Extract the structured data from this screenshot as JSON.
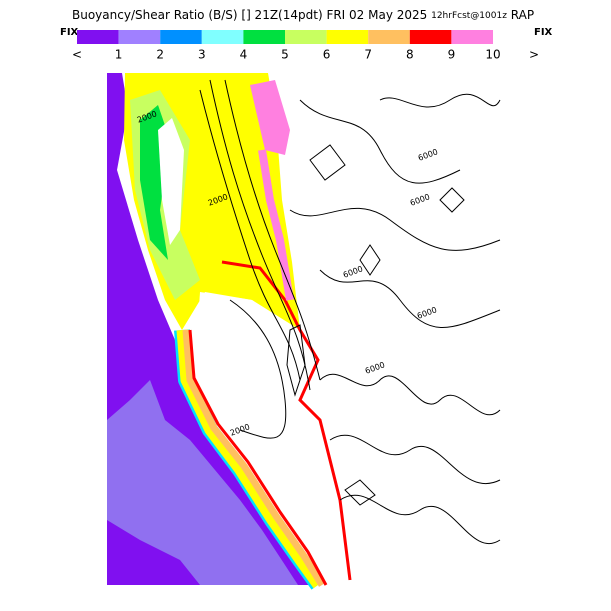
{
  "header": {
    "title": "Buoyancy/Shear Ratio (B/S) [] 21Z(14pdt) FRI 02 May 2025",
    "forecast": "12hrFcst@1001z",
    "model": "RAP"
  },
  "legend": {
    "fix_left": "FIX",
    "fix_right": "FIX",
    "prev": "<",
    "next": ">",
    "items": [
      {
        "color": "#8010f0",
        "label": ""
      },
      {
        "color": "#a080ff",
        "label": "1"
      },
      {
        "color": "#0090ff",
        "label": "2"
      },
      {
        "color": "#80ffff",
        "label": "3"
      },
      {
        "color": "#00e040",
        "label": "4"
      },
      {
        "color": "#c8ff60",
        "label": "5"
      },
      {
        "color": "#ffff00",
        "label": "6"
      },
      {
        "color": "#ffc060",
        "label": "7"
      },
      {
        "color": "#ff0000",
        "label": "8"
      },
      {
        "color": "#ff80e0",
        "label": "9"
      },
      {
        "color": null,
        "label": "10"
      }
    ]
  },
  "map": {
    "contour_labels": [
      "6000",
      "6000",
      "6000",
      "6000",
      "2000",
      "2000",
      "6000",
      "2000"
    ]
  }
}
